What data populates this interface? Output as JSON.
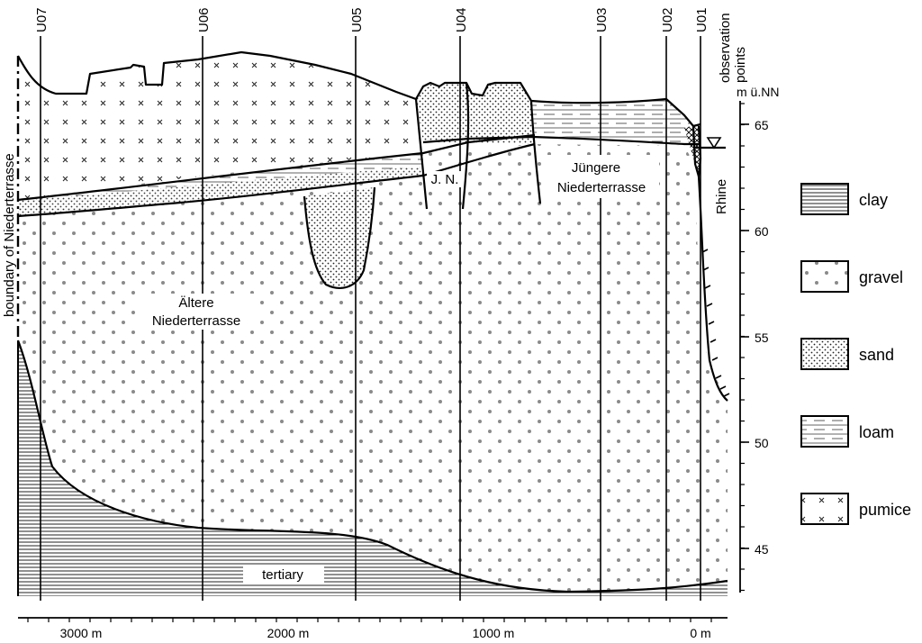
{
  "observation_points": {
    "header": "observation points",
    "ids": [
      "U07",
      "U06",
      "U05",
      "U04",
      "U03",
      "U02",
      "U01"
    ]
  },
  "elevation_axis": {
    "unit": "m ü.NN",
    "ticks": [
      "65",
      "60",
      "55",
      "50",
      "45"
    ]
  },
  "distance_axis": {
    "ticks": [
      "3000 m",
      "2000 m",
      "1000 m",
      "0 m"
    ]
  },
  "labels": {
    "boundary": "boundary of Niederterrasse",
    "altere_line1": "Ältere",
    "altere_line2": "Niederterrasse",
    "jungere_line1": "Jüngere",
    "jungere_line2": "Niederterrasse",
    "jn": "J. N.",
    "rhine": "Rhine",
    "tertiary": "tertiary"
  },
  "legend": [
    {
      "key": "clay",
      "label": "clay"
    },
    {
      "key": "gravel",
      "label": "gravel"
    },
    {
      "key": "sand",
      "label": "sand"
    },
    {
      "key": "loam",
      "label": "loam"
    },
    {
      "key": "pumice",
      "label": "pumice"
    }
  ]
}
